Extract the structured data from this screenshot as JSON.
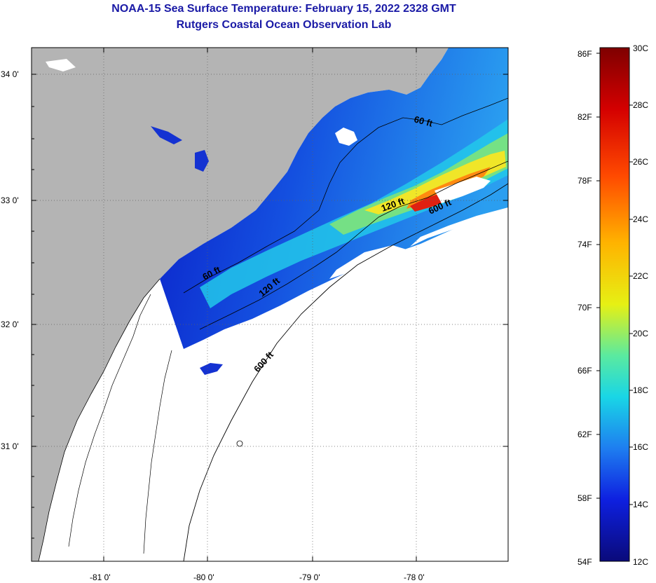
{
  "title": {
    "line1": "NOAA-15 Sea Surface Temperature:  February 15, 2022 2328 GMT",
    "line2": "Rutgers Coastal Ocean Observation Lab"
  },
  "axes": {
    "lat_labels": [
      "34 0'",
      "33 0'",
      "32 0'",
      "31 0'"
    ],
    "lon_labels": [
      "-81 0'",
      "-80 0'",
      "-79 0'",
      "-78 0'"
    ]
  },
  "contours": {
    "c60a": "60 ft",
    "c60b": "60 ft",
    "c120a": "120 ft",
    "c120b": "120 ft",
    "c600a": "600 ft",
    "c600b": "600 ft"
  },
  "colorbar": {
    "fahrenheit": [
      "86F",
      "82F",
      "78F",
      "74F",
      "70F",
      "66F",
      "62F",
      "58F",
      "54F"
    ],
    "celsius": [
      "30C",
      "28C",
      "26C",
      "24C",
      "22C",
      "20C",
      "18C",
      "16C",
      "14C",
      "12C"
    ]
  },
  "colors": {
    "land": "#b4b4b4",
    "title": "#1a1aa6",
    "no_data": "#ffffff"
  }
}
